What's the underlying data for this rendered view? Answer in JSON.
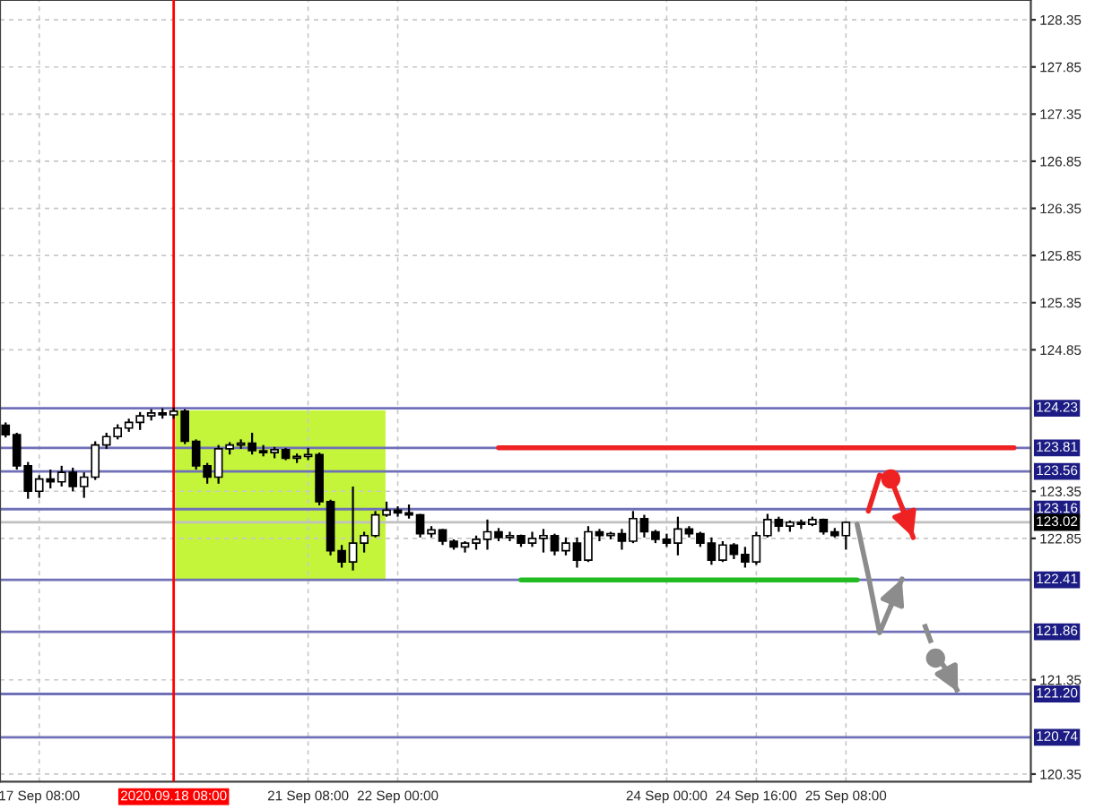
{
  "chart_data": {
    "type": "candlestick",
    "color": "#000000",
    "categories": [
      null,
      null,
      null,
      "17 Sep 08:00",
      null,
      null,
      null,
      null,
      null,
      null,
      null,
      null,
      null,
      null,
      null,
      "2020.09.18 08:00",
      null,
      null,
      null,
      null,
      null,
      null,
      null,
      null,
      null,
      null,
      null,
      "21 Sep 08:00",
      null,
      null,
      null,
      null,
      null,
      null,
      null,
      "22 Sep 00:00",
      null,
      null,
      null,
      null,
      null,
      null,
      null,
      null,
      null,
      null,
      null,
      null,
      null,
      null,
      null,
      null,
      null,
      null,
      null,
      null,
      null,
      null,
      null,
      "24 Sep 00:00",
      null,
      null,
      null,
      null,
      null,
      null,
      null,
      "24 Sep 16:00",
      null,
      null,
      null,
      null,
      null,
      null,
      null,
      "25 Sep 08:00",
      null,
      null,
      null,
      null,
      null,
      null,
      null,
      null,
      null,
      null,
      null,
      null,
      null,
      null,
      null,
      null
    ],
    "ohlc": [
      [
        124.05,
        124.08,
        123.92,
        123.95
      ],
      [
        123.95,
        123.97,
        123.58,
        123.62
      ],
      [
        123.62,
        123.66,
        123.27,
        123.35
      ],
      [
        123.35,
        123.52,
        123.28,
        123.48
      ],
      [
        123.48,
        123.58,
        123.38,
        123.45
      ],
      [
        123.45,
        123.62,
        123.4,
        123.55
      ],
      [
        123.55,
        123.6,
        123.35,
        123.4
      ],
      [
        123.4,
        123.55,
        123.28,
        123.5
      ],
      [
        123.5,
        123.88,
        123.47,
        123.84
      ],
      [
        123.84,
        123.97,
        123.8,
        123.93
      ],
      [
        123.93,
        124.06,
        123.9,
        124.02
      ],
      [
        124.02,
        124.12,
        123.98,
        124.08
      ],
      [
        124.08,
        124.19,
        124.0,
        124.15
      ],
      [
        124.15,
        124.22,
        124.1,
        124.18
      ],
      [
        124.18,
        124.23,
        124.12,
        124.16
      ],
      [
        124.16,
        124.24,
        124.12,
        124.2
      ],
      [
        124.2,
        124.22,
        123.85,
        123.88
      ],
      [
        123.88,
        123.9,
        123.58,
        123.62
      ],
      [
        123.62,
        123.65,
        123.43,
        123.5
      ],
      [
        123.5,
        123.84,
        123.43,
        123.8
      ],
      [
        123.8,
        123.87,
        123.74,
        123.84
      ],
      [
        123.84,
        123.9,
        123.8,
        123.86
      ],
      [
        123.86,
        123.97,
        123.74,
        123.78
      ],
      [
        123.78,
        123.84,
        123.72,
        123.76
      ],
      [
        123.76,
        123.82,
        123.7,
        123.79
      ],
      [
        123.79,
        123.81,
        123.68,
        123.7
      ],
      [
        123.7,
        123.75,
        123.65,
        123.72
      ],
      [
        123.72,
        123.81,
        123.68,
        123.74
      ],
      [
        123.74,
        123.76,
        123.2,
        123.24
      ],
      [
        123.24,
        123.26,
        122.67,
        122.72
      ],
      [
        122.72,
        122.78,
        122.54,
        122.6
      ],
      [
        122.6,
        123.4,
        122.51,
        122.8
      ],
      [
        122.8,
        122.92,
        122.7,
        122.88
      ],
      [
        122.88,
        123.14,
        122.86,
        123.1
      ],
      [
        123.1,
        123.24,
        123.08,
        123.15
      ],
      [
        123.15,
        123.19,
        123.08,
        123.12
      ],
      [
        123.12,
        123.21,
        123.06,
        123.1
      ],
      [
        123.1,
        123.11,
        122.86,
        122.9
      ],
      [
        122.9,
        122.98,
        122.86,
        122.94
      ],
      [
        122.94,
        122.95,
        122.78,
        122.82
      ],
      [
        122.82,
        122.84,
        122.73,
        122.76
      ],
      [
        122.76,
        122.82,
        122.7,
        122.8
      ],
      [
        122.8,
        122.88,
        122.73,
        122.84
      ],
      [
        122.84,
        123.05,
        122.73,
        122.92
      ],
      [
        122.92,
        122.96,
        122.82,
        122.86
      ],
      [
        122.86,
        122.92,
        122.82,
        122.88
      ],
      [
        122.88,
        122.89,
        122.76,
        122.8
      ],
      [
        122.8,
        122.92,
        122.76,
        122.85
      ],
      [
        122.85,
        122.95,
        122.7,
        122.88
      ],
      [
        122.88,
        122.9,
        122.67,
        122.72
      ],
      [
        122.72,
        122.86,
        122.67,
        122.8
      ],
      [
        122.8,
        122.86,
        122.54,
        122.62
      ],
      [
        122.62,
        122.98,
        122.6,
        122.92
      ],
      [
        122.92,
        122.95,
        122.82,
        122.88
      ],
      [
        122.88,
        122.92,
        122.84,
        122.9
      ],
      [
        122.9,
        122.95,
        122.73,
        122.82
      ],
      [
        122.82,
        123.14,
        122.8,
        123.06
      ],
      [
        123.06,
        123.1,
        122.86,
        122.92
      ],
      [
        122.92,
        122.94,
        122.8,
        122.84
      ],
      [
        122.84,
        122.9,
        122.76,
        122.8
      ],
      [
        122.8,
        123.08,
        122.67,
        122.95
      ],
      [
        122.95,
        122.98,
        122.86,
        122.9
      ],
      [
        122.9,
        122.92,
        122.76,
        122.8
      ],
      [
        122.8,
        122.86,
        122.57,
        122.62
      ],
      [
        122.62,
        122.82,
        122.6,
        122.78
      ],
      [
        122.78,
        122.8,
        122.63,
        122.68
      ],
      [
        122.68,
        122.76,
        122.54,
        122.6
      ],
      [
        122.6,
        122.92,
        122.57,
        122.88
      ],
      [
        122.88,
        123.11,
        122.86,
        123.05
      ],
      [
        123.05,
        123.08,
        122.92,
        122.98
      ],
      [
        122.98,
        123.04,
        122.92,
        123.02
      ],
      [
        123.02,
        123.05,
        122.95,
        123.0
      ],
      [
        123.0,
        123.08,
        122.98,
        123.05
      ],
      [
        123.05,
        123.06,
        122.89,
        122.92
      ],
      [
        122.92,
        122.96,
        122.86,
        122.88
      ],
      [
        122.88,
        123.03,
        122.73,
        123.02
      ],
      null,
      null,
      null,
      null,
      null,
      null,
      null,
      null,
      null,
      null,
      null,
      null,
      null,
      null,
      null,
      null
    ],
    "series": [
      {
        "type": "line",
        "color": "#ee2222",
        "values": [
          null,
          null,
          null,
          null,
          null,
          null,
          null,
          null,
          null,
          null,
          null,
          null,
          null,
          null,
          null,
          null,
          null,
          null,
          null,
          null,
          null,
          null,
          null,
          null,
          null,
          null,
          null,
          null,
          null,
          null,
          null,
          null,
          null,
          null,
          null,
          null,
          null,
          null,
          null,
          null,
          null,
          null,
          null,
          null,
          123.81,
          123.81,
          123.81,
          123.81,
          123.81,
          123.81,
          123.81,
          123.81,
          123.81,
          123.81,
          123.81,
          123.81,
          123.81,
          123.81,
          123.81,
          123.81,
          123.81,
          123.81,
          123.81,
          123.81,
          123.81,
          123.81,
          123.81,
          123.81,
          123.81,
          123.81,
          123.81,
          123.81,
          123.81,
          123.81,
          123.81,
          123.81,
          123.81,
          123.81,
          123.81,
          123.81,
          123.81,
          123.81,
          123.81,
          123.81,
          123.81,
          123.81,
          123.81,
          123.81,
          123.81,
          123.81,
          123.81,
          null
        ]
      },
      {
        "type": "line",
        "color": "#22bb22",
        "values": [
          null,
          null,
          null,
          null,
          null,
          null,
          null,
          null,
          null,
          null,
          null,
          null,
          null,
          null,
          null,
          null,
          null,
          null,
          null,
          null,
          null,
          null,
          null,
          null,
          null,
          null,
          null,
          null,
          null,
          null,
          null,
          null,
          null,
          null,
          null,
          null,
          null,
          null,
          null,
          null,
          null,
          null,
          null,
          null,
          null,
          null,
          122.41,
          122.41,
          122.41,
          122.41,
          122.41,
          122.41,
          122.41,
          122.41,
          122.41,
          122.41,
          122.41,
          122.41,
          122.41,
          122.41,
          122.41,
          122.41,
          122.41,
          122.41,
          122.41,
          122.41,
          122.41,
          122.41,
          122.41,
          122.41,
          122.41,
          122.41,
          122.41,
          122.41,
          122.41,
          122.41,
          122.41,
          null,
          null,
          null,
          null,
          null,
          null,
          null,
          null,
          null,
          null,
          null,
          null,
          null,
          null,
          null
        ]
      },
      {
        "type": "line",
        "color": "#ee2222",
        "values": [
          null,
          null,
          null,
          null,
          null,
          null,
          null,
          null,
          null,
          null,
          null,
          null,
          null,
          null,
          null,
          null,
          null,
          null,
          null,
          null,
          null,
          null,
          null,
          null,
          null,
          null,
          null,
          null,
          null,
          null,
          null,
          null,
          null,
          null,
          null,
          null,
          null,
          null,
          null,
          null,
          null,
          null,
          null,
          null,
          null,
          null,
          null,
          null,
          null,
          null,
          null,
          null,
          null,
          null,
          null,
          null,
          null,
          null,
          null,
          null,
          null,
          null,
          null,
          null,
          null,
          null,
          null,
          null,
          null,
          null,
          null,
          null,
          null,
          null,
          null,
          null,
          null,
          123.14,
          123.52,
          123.48,
          123.18,
          122.86,
          null,
          null,
          null,
          null,
          null,
          null,
          null,
          null,
          null,
          null
        ]
      },
      {
        "type": "line",
        "color": "#8c8c8c",
        "values": [
          null,
          null,
          null,
          null,
          null,
          null,
          null,
          null,
          null,
          null,
          null,
          null,
          null,
          null,
          null,
          null,
          null,
          null,
          null,
          null,
          null,
          null,
          null,
          null,
          null,
          null,
          null,
          null,
          null,
          null,
          null,
          null,
          null,
          null,
          null,
          null,
          null,
          null,
          null,
          null,
          null,
          null,
          null,
          null,
          null,
          null,
          null,
          null,
          null,
          null,
          null,
          null,
          null,
          null,
          null,
          null,
          null,
          null,
          null,
          null,
          null,
          null,
          null,
          null,
          null,
          null,
          null,
          null,
          null,
          null,
          null,
          null,
          null,
          null,
          null,
          null,
          123.0,
          122.45,
          121.85,
          122.13,
          122.42,
          null,
          null,
          null,
          null,
          null,
          null,
          null,
          null,
          null,
          null,
          null
        ]
      },
      {
        "type": "line",
        "line_style": "dashed",
        "color": "#8c8c8c",
        "values": [
          null,
          null,
          null,
          null,
          null,
          null,
          null,
          null,
          null,
          null,
          null,
          null,
          null,
          null,
          null,
          null,
          null,
          null,
          null,
          null,
          null,
          null,
          null,
          null,
          null,
          null,
          null,
          null,
          null,
          null,
          null,
          null,
          null,
          null,
          null,
          null,
          null,
          null,
          null,
          null,
          null,
          null,
          null,
          null,
          null,
          null,
          null,
          null,
          null,
          null,
          null,
          null,
          null,
          null,
          null,
          null,
          null,
          null,
          null,
          null,
          null,
          null,
          null,
          null,
          null,
          null,
          null,
          null,
          null,
          null,
          null,
          null,
          null,
          null,
          null,
          null,
          null,
          null,
          null,
          null,
          null,
          null,
          121.94,
          121.62,
          121.45,
          121.22,
          null,
          null,
          null,
          null,
          null,
          null
        ]
      },
      {
        "type": "scatter",
        "marker": "circle",
        "colors": [
          null,
          null,
          null,
          null,
          null,
          null,
          null,
          null,
          null,
          null,
          null,
          null,
          null,
          null,
          null,
          null,
          null,
          null,
          null,
          null,
          null,
          null,
          null,
          null,
          null,
          null,
          null,
          null,
          null,
          null,
          null,
          null,
          null,
          null,
          null,
          null,
          null,
          null,
          null,
          null,
          null,
          null,
          null,
          null,
          null,
          null,
          null,
          null,
          null,
          null,
          null,
          null,
          null,
          null,
          null,
          null,
          null,
          null,
          null,
          null,
          null,
          null,
          null,
          null,
          null,
          null,
          null,
          null,
          null,
          null,
          null,
          null,
          null,
          null,
          null,
          null,
          null,
          null,
          null,
          "#ee2222",
          null,
          null,
          null,
          "#8c8c8c",
          null,
          null,
          null,
          null,
          null,
          null,
          null,
          null
        ],
        "values": [
          null,
          null,
          null,
          null,
          null,
          null,
          null,
          null,
          null,
          null,
          null,
          null,
          null,
          null,
          null,
          null,
          null,
          null,
          null,
          null,
          null,
          null,
          null,
          null,
          null,
          null,
          null,
          null,
          null,
          null,
          null,
          null,
          null,
          null,
          null,
          null,
          null,
          null,
          null,
          null,
          null,
          null,
          null,
          null,
          null,
          null,
          null,
          null,
          null,
          null,
          null,
          null,
          null,
          null,
          null,
          null,
          null,
          null,
          null,
          null,
          null,
          null,
          null,
          null,
          null,
          null,
          null,
          null,
          null,
          null,
          null,
          null,
          null,
          null,
          null,
          null,
          null,
          null,
          null,
          123.48,
          null,
          null,
          null,
          121.58,
          null,
          null,
          null,
          null,
          null,
          null,
          null,
          null
        ]
      }
    ],
    "ylim": [
      120.27,
      128.56
    ],
    "yticks": [
      128.35,
      127.85,
      127.35,
      126.85,
      126.35,
      125.85,
      125.35,
      124.85,
      123.35,
      122.85,
      121.35,
      120.35
    ],
    "ref_lines": [
      {
        "axis": "y",
        "value": 124.23,
        "label": "124.23",
        "color": "#7070b8"
      },
      {
        "axis": "y",
        "value": 123.81,
        "label": "123.81",
        "color": "#7070b8"
      },
      {
        "axis": "y",
        "value": 123.56,
        "label": "123.56",
        "color": "#7070b8"
      },
      {
        "axis": "y",
        "value": 123.16,
        "label": "123.16",
        "color": "#7070b8"
      },
      {
        "axis": "y",
        "value": 123.02,
        "label": "123.02",
        "color": "#c0c0c0"
      },
      {
        "axis": "y",
        "value": 122.41,
        "label": "122.41",
        "color": "#7070b8"
      },
      {
        "axis": "y",
        "value": 121.86,
        "label": "121.86",
        "color": "#7070b8"
      },
      {
        "axis": "y",
        "value": 121.2,
        "label": "121.20",
        "color": "#7070b8"
      },
      {
        "axis": "y",
        "value": 120.74,
        "label": "120.74",
        "color": "#7070b8"
      },
      {
        "axis": "x",
        "value": "2020.09.18 08:00",
        "color": "#ff0000"
      }
    ],
    "grid": true
  }
}
